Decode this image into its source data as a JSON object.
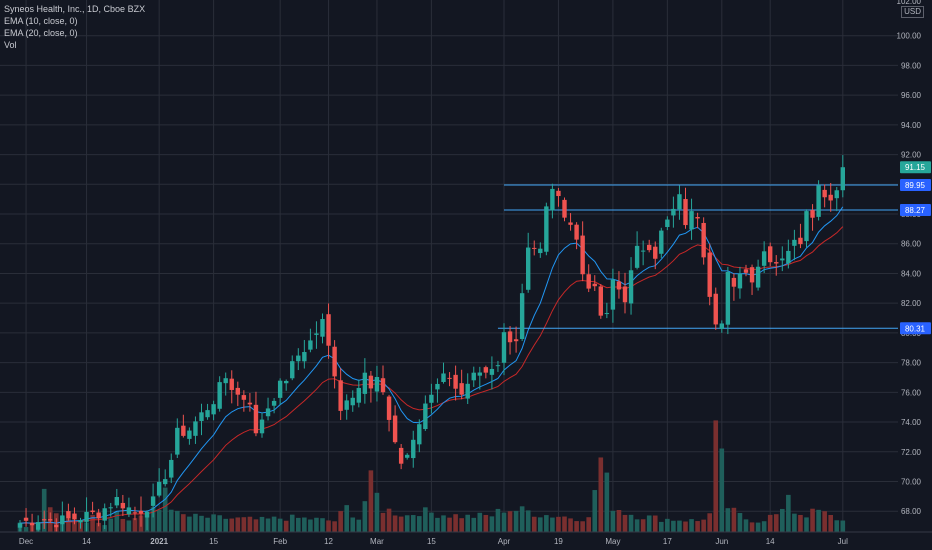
{
  "legend": {
    "title": "Syneos Health, Inc., 1D, Cboe BZX",
    "ema10": "EMA (10, close, 0)",
    "ema20": "EMA (20, close, 0)",
    "vol": "Vol"
  },
  "currency": "USD",
  "colors": {
    "background": "#131722",
    "grid": "#2a2e39",
    "up": "#26a69a",
    "down": "#ef5350",
    "vol_up": "#1f5f5b",
    "vol_down": "#7a2f2f",
    "ema10": "#2196f3",
    "ema20": "#c62828",
    "level_line": "#42a5f5",
    "axis_text": "#b2b5be"
  },
  "chart_data": {
    "type": "candlestick",
    "title": "Syneos Health, Inc., 1D, Cboe BZX",
    "ylim": [
      66.6,
      102
    ],
    "y_ticks": [
      68,
      70,
      72,
      74,
      76,
      78,
      80,
      82,
      84,
      86,
      88,
      90,
      92,
      94,
      96,
      98,
      100
    ],
    "top_partial_tick": "102.00",
    "x_ticks": [
      "Dec",
      "14",
      "2021",
      "15",
      "Feb",
      "12",
      "Mar",
      "15",
      "Apr",
      "19",
      "May",
      "17",
      "Jun",
      "14",
      "Jul"
    ],
    "x_tick_bar_index": [
      1,
      11,
      23,
      32,
      43,
      51,
      59,
      68,
      80,
      89,
      98,
      107,
      116,
      124,
      136
    ],
    "horizontal_levels": [
      {
        "value": 89.95,
        "label": "89.95",
        "from_bar": 80
      },
      {
        "value": 88.27,
        "label": "88.27",
        "from_bar": 80
      },
      {
        "value": 80.31,
        "label": "80.31",
        "from_bar": 79
      }
    ],
    "last_price": {
      "value": 91.15,
      "label": "91.15"
    },
    "grid": true,
    "volume_visible": true,
    "price_anchors": [
      [
        0,
        67.2
      ],
      [
        3,
        67.5
      ],
      [
        6,
        67.3
      ],
      [
        10,
        67.6
      ],
      [
        13,
        67.9
      ],
      [
        16,
        68.8
      ],
      [
        19,
        67.9
      ],
      [
        22,
        68.6
      ],
      [
        24,
        70.5
      ],
      [
        25,
        71.5
      ],
      [
        26,
        73.2
      ],
      [
        28,
        73.5
      ],
      [
        30,
        74.5
      ],
      [
        32,
        75.5
      ],
      [
        34,
        77.0
      ],
      [
        36,
        75.8
      ],
      [
        38,
        75.5
      ],
      [
        39,
        73.0
      ],
      [
        40,
        74.3
      ],
      [
        42,
        75.8
      ],
      [
        44,
        77.0
      ],
      [
        46,
        78.5
      ],
      [
        48,
        79.4
      ],
      [
        50,
        80.7
      ],
      [
        51,
        79.0
      ],
      [
        52,
        77.4
      ],
      [
        53,
        75.0
      ],
      [
        55,
        76.0
      ],
      [
        57,
        77.4
      ],
      [
        58,
        76.1
      ],
      [
        59,
        76.9
      ],
      [
        61,
        74.3
      ],
      [
        62,
        72.7
      ],
      [
        63,
        71.2
      ],
      [
        65,
        72.5
      ],
      [
        67,
        75.3
      ],
      [
        69,
        76.8
      ],
      [
        71,
        77.3
      ],
      [
        73,
        75.6
      ],
      [
        75,
        76.9
      ],
      [
        77,
        77.0
      ],
      [
        79,
        77.7
      ],
      [
        80,
        80.0
      ],
      [
        82,
        79.6
      ],
      [
        84,
        86.0
      ],
      [
        86,
        85.5
      ],
      [
        87,
        88.3
      ],
      [
        88,
        89.9
      ],
      [
        89,
        88.8
      ],
      [
        90,
        88.2
      ],
      [
        91,
        87.4
      ],
      [
        92,
        86.2
      ],
      [
        93,
        84.0
      ],
      [
        95,
        82.7
      ],
      [
        96,
        81.2
      ],
      [
        97,
        81.0
      ],
      [
        98,
        83.5
      ],
      [
        100,
        82.4
      ],
      [
        102,
        85.5
      ],
      [
        104,
        86.0
      ],
      [
        105,
        85.3
      ],
      [
        106,
        86.7
      ],
      [
        108,
        88.2
      ],
      [
        109,
        89.0
      ],
      [
        110,
        87.5
      ],
      [
        111,
        87.9
      ],
      [
        112,
        88.0
      ],
      [
        113,
        85.5
      ],
      [
        114,
        82.8
      ],
      [
        115,
        81.0
      ],
      [
        116,
        80.6
      ],
      [
        117,
        83.8
      ],
      [
        118,
        82.8
      ],
      [
        119,
        84.3
      ],
      [
        121,
        83.8
      ],
      [
        123,
        85.5
      ],
      [
        125,
        84.8
      ],
      [
        127,
        85.7
      ],
      [
        129,
        86.3
      ],
      [
        130,
        88.5
      ],
      [
        131,
        88.2
      ],
      [
        132,
        89.8
      ],
      [
        133,
        89.5
      ],
      [
        134,
        89.0
      ],
      [
        135,
        89.95
      ],
      [
        136,
        91.15
      ]
    ],
    "volume_anchors": [
      [
        0,
        0.9
      ],
      [
        1,
        0.6
      ],
      [
        3,
        0.8
      ],
      [
        4,
        3.5
      ],
      [
        6,
        1.4
      ],
      [
        8,
        1.2
      ],
      [
        10,
        0.9
      ],
      [
        12,
        1.3
      ],
      [
        14,
        0.8
      ],
      [
        16,
        2.1
      ],
      [
        18,
        1.0
      ],
      [
        20,
        1.6
      ],
      [
        23,
        2.0
      ],
      [
        24,
        4.2
      ],
      [
        25,
        2.5
      ],
      [
        26,
        1.6
      ],
      [
        28,
        1.4
      ],
      [
        32,
        1.3
      ],
      [
        36,
        1.2
      ],
      [
        40,
        1.1
      ],
      [
        44,
        1.3
      ],
      [
        48,
        1.2
      ],
      [
        50,
        1.1
      ],
      [
        52,
        1.0
      ],
      [
        54,
        2.2
      ],
      [
        56,
        1.2
      ],
      [
        58,
        4.5
      ],
      [
        60,
        2.1
      ],
      [
        62,
        1.8
      ],
      [
        64,
        1.5
      ],
      [
        66,
        1.9
      ],
      [
        70,
        1.6
      ],
      [
        74,
        1.4
      ],
      [
        78,
        1.5
      ],
      [
        80,
        2.1
      ],
      [
        84,
        1.9
      ],
      [
        86,
        1.6
      ],
      [
        90,
        1.4
      ],
      [
        94,
        1.2
      ],
      [
        96,
        6.6
      ],
      [
        98,
        2.4
      ],
      [
        100,
        1.8
      ],
      [
        102,
        1.5
      ],
      [
        106,
        1.2
      ],
      [
        110,
        1.1
      ],
      [
        112,
        1.0
      ],
      [
        114,
        1.6
      ],
      [
        115,
        8.5
      ],
      [
        116,
        6.2
      ],
      [
        117,
        2.3
      ],
      [
        118,
        1.8
      ],
      [
        120,
        1.2
      ],
      [
        122,
        1.0
      ],
      [
        124,
        1.4
      ],
      [
        126,
        1.7
      ],
      [
        127,
        3.8
      ],
      [
        128,
        1.8
      ],
      [
        130,
        1.6
      ],
      [
        132,
        1.9
      ],
      [
        134,
        1.4
      ],
      [
        136,
        1.0
      ]
    ]
  }
}
